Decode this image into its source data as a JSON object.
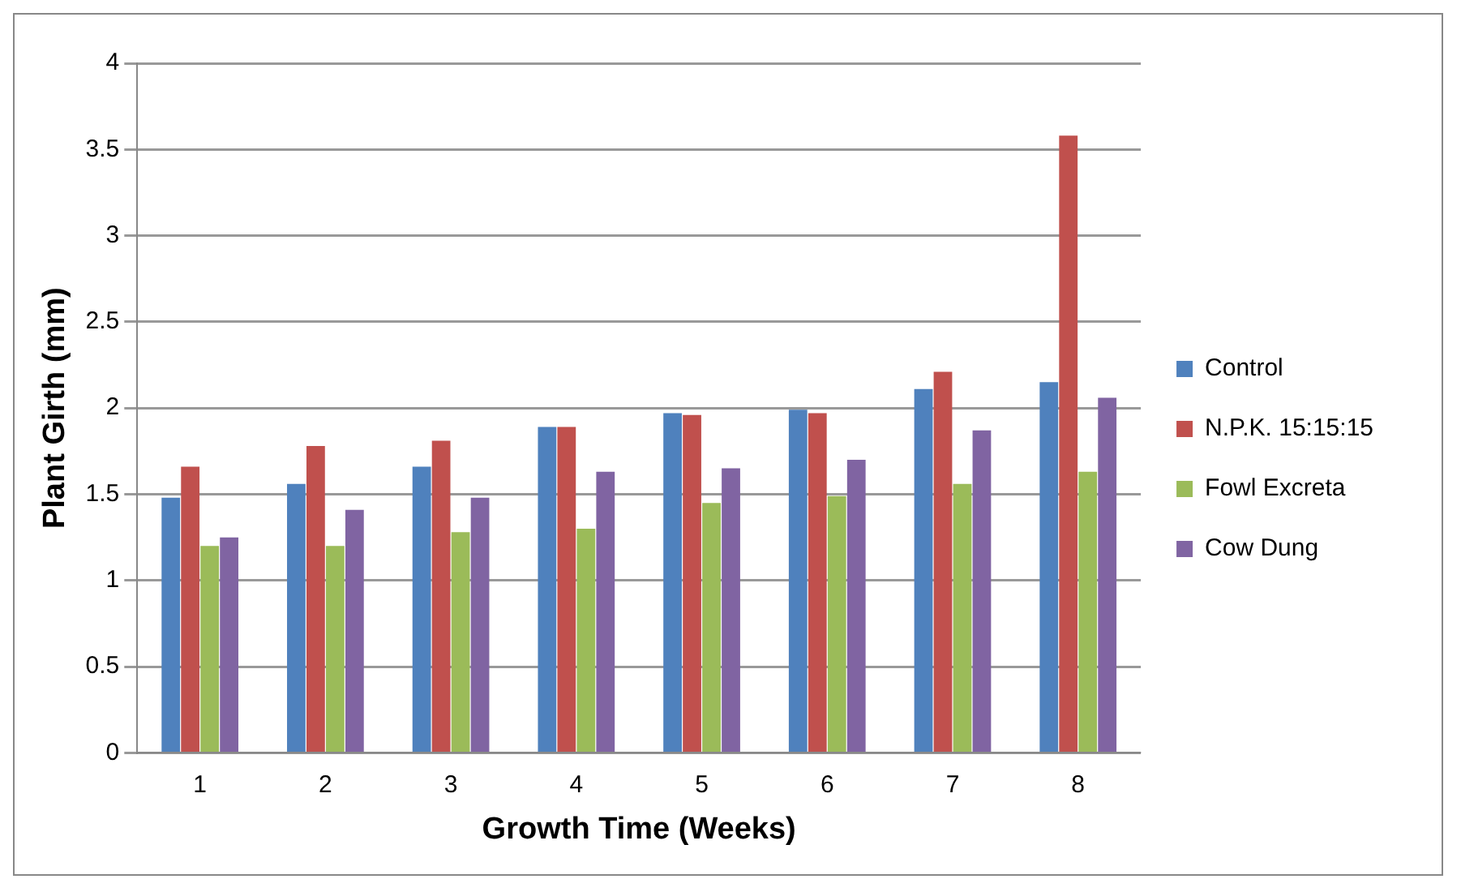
{
  "chart_data": {
    "type": "bar",
    "xlabel": "Growth Time (Weeks)",
    "ylabel": "Plant Girth (mm)",
    "categories": [
      "1",
      "2",
      "3",
      "4",
      "5",
      "6",
      "7",
      "8"
    ],
    "series": [
      {
        "name": "Control",
        "color": "#4f81bd",
        "values": [
          1.48,
          1.56,
          1.66,
          1.89,
          1.97,
          1.99,
          2.11,
          2.15
        ]
      },
      {
        "name": "N.P.K. 15:15:15",
        "color": "#c0504d",
        "values": [
          1.66,
          1.78,
          1.81,
          1.89,
          1.96,
          1.97,
          2.21,
          3.58
        ]
      },
      {
        "name": "Fowl Excreta",
        "color": "#9bbb59",
        "values": [
          1.2,
          1.2,
          1.28,
          1.3,
          1.45,
          1.49,
          1.56,
          1.63
        ]
      },
      {
        "name": "Cow Dung",
        "color": "#8064a2",
        "values": [
          1.25,
          1.41,
          1.48,
          1.63,
          1.65,
          1.7,
          1.87,
          2.06
        ]
      }
    ],
    "ylim": [
      0,
      4
    ],
    "yticks": [
      0,
      0.5,
      1,
      1.5,
      2,
      2.5,
      3,
      3.5,
      4
    ],
    "grid": "y",
    "legend": "right"
  }
}
